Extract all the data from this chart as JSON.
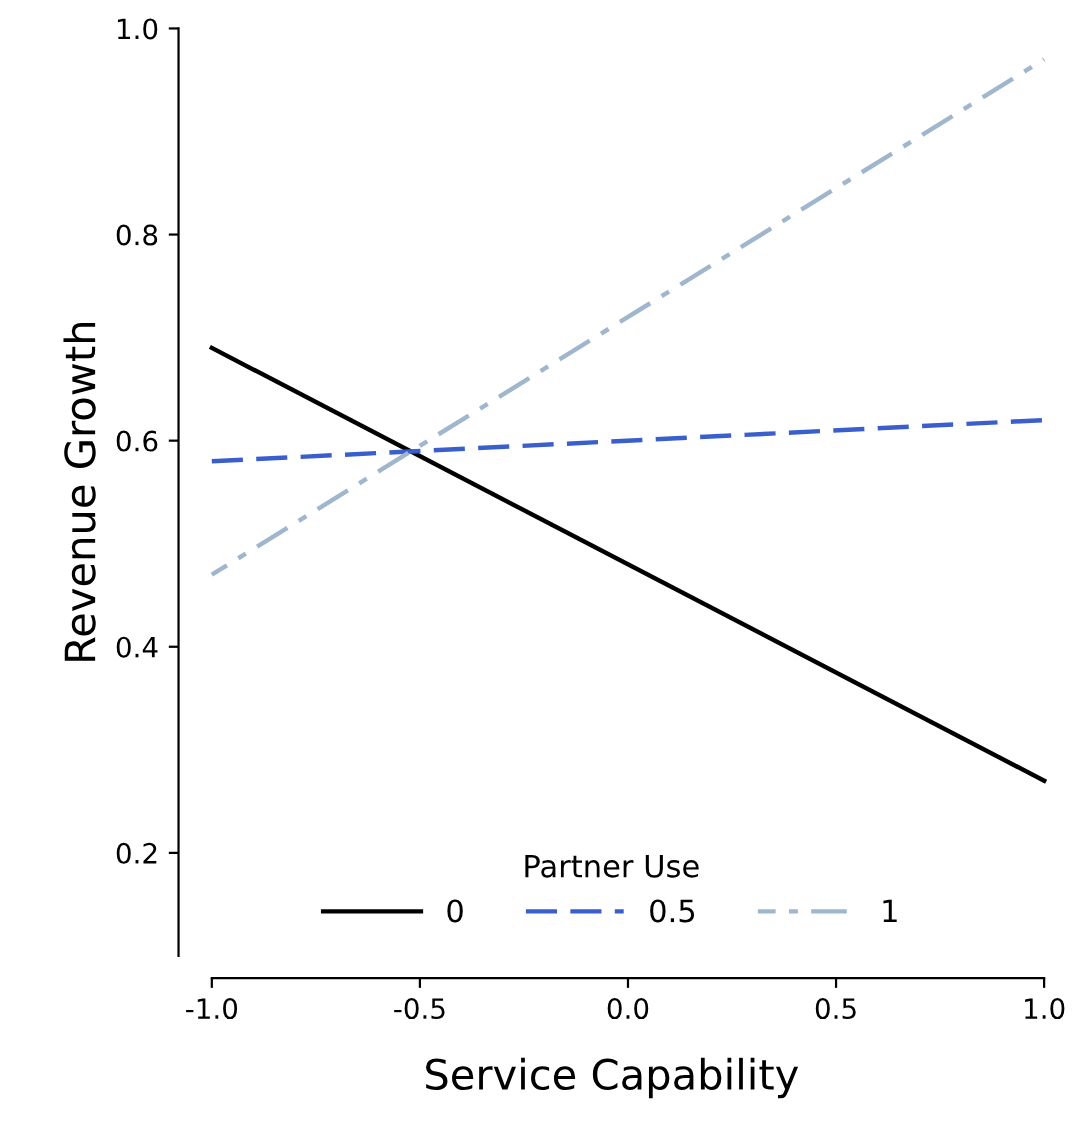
{
  "chart_data": {
    "type": "line",
    "xlabel": "Service Capability",
    "ylabel": "Revenue Growth",
    "legend_title": "Partner Use",
    "legend": "bottom",
    "grid": false,
    "series": [
      {
        "name": "0",
        "color": "#000000",
        "values": [
          0.69,
          0.27
        ],
        "line_style": "solid"
      },
      {
        "name": "0.5",
        "color": "#3a5fcd",
        "values": [
          0.58,
          0.62
        ],
        "line_style": "dashed"
      },
      {
        "name": "1",
        "color": "#9fb6cd",
        "values": [
          0.47,
          0.97
        ],
        "line_style": "dashdot"
      }
    ],
    "x": [
      -1.0,
      1.0
    ],
    "xlim": [
      -1.08,
      1.0
    ],
    "ylim": [
      0.1,
      1.0
    ],
    "xticks": [
      {
        "value": -1.0,
        "label": "-1.0"
      },
      {
        "value": -0.5,
        "label": "-0.5"
      },
      {
        "value": 0.0,
        "label": "0.0"
      },
      {
        "value": 0.5,
        "label": "0.5"
      },
      {
        "value": 1.0,
        "label": "1.0"
      }
    ],
    "yticks": [
      0.2,
      {
        "value": 0.4,
        "label": "0.4"
      },
      {
        "value": 0.6,
        "label": "0.6"
      },
      {
        "value": 0.8,
        "label": "0.8"
      },
      {
        "value": 1.0,
        "label": "1.0"
      }
    ]
  }
}
